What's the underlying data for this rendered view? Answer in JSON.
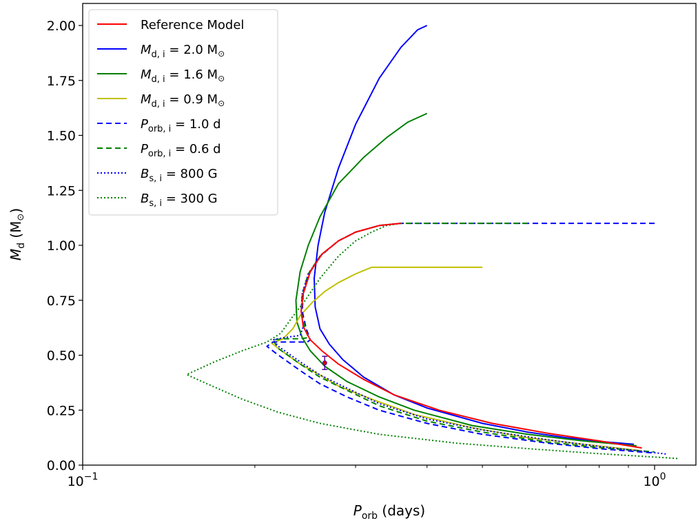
{
  "chart_data": {
    "type": "line",
    "title": "",
    "xlabel": {
      "main": "P",
      "sub": "orb",
      "rest": " (days)"
    },
    "ylabel": {
      "main": "M",
      "sub": "d",
      "rest": " (M",
      "sym": "⊙",
      "end": ")"
    },
    "xscale": "log",
    "xlim": [
      0.1,
      1.2
    ],
    "ylim": [
      0.0,
      2.1
    ],
    "x_major_ticks": [
      {
        "value": 0.1,
        "base": "10",
        "exp": "−1"
      },
      {
        "value": 1.0,
        "base": "10",
        "exp": "0"
      }
    ],
    "x_minor_ticks": [
      0.2,
      0.3,
      0.4,
      0.5,
      0.6,
      0.7,
      0.8,
      0.9
    ],
    "y_ticks": [
      {
        "value": 0.0,
        "label": "0.00"
      },
      {
        "value": 0.25,
        "label": "0.25"
      },
      {
        "value": 0.5,
        "label": "0.50"
      },
      {
        "value": 0.75,
        "label": "0.75"
      },
      {
        "value": 1.0,
        "label": "1.00"
      },
      {
        "value": 1.25,
        "label": "1.25"
      },
      {
        "value": 1.5,
        "label": "1.50"
      },
      {
        "value": 1.75,
        "label": "1.75"
      },
      {
        "value": 2.0,
        "label": "2.00"
      }
    ],
    "grid": false,
    "legend_position": "top-left",
    "observed_point": {
      "x": 0.265,
      "y": 0.465,
      "yerr": 0.03,
      "color": "#e00000",
      "edge": "#5000a0"
    },
    "series": [
      {
        "legend": {
          "sym": "M",
          "sub": "d, i",
          "rest": " = 2.0 M",
          "sun": "⊙"
        },
        "color": "#0000ff",
        "dash": "solid",
        "points": [
          [
            0.4,
            2.0
          ],
          [
            0.385,
            1.98
          ],
          [
            0.36,
            1.9
          ],
          [
            0.33,
            1.76
          ],
          [
            0.3,
            1.55
          ],
          [
            0.28,
            1.35
          ],
          [
            0.265,
            1.15
          ],
          [
            0.258,
            1.0
          ],
          [
            0.254,
            0.85
          ],
          [
            0.255,
            0.72
          ],
          [
            0.26,
            0.62
          ],
          [
            0.27,
            0.55
          ],
          [
            0.285,
            0.48
          ],
          [
            0.31,
            0.4
          ],
          [
            0.35,
            0.32
          ],
          [
            0.4,
            0.26
          ],
          [
            0.5,
            0.19
          ],
          [
            0.6,
            0.15
          ],
          [
            0.7,
            0.125
          ],
          [
            0.8,
            0.108
          ],
          [
            0.92,
            0.095
          ]
        ]
      },
      {
        "legend": {
          "sym": "M",
          "sub": "d, i",
          "rest": " = 1.6 M",
          "sun": "⊙"
        },
        "color": "#008000",
        "dash": "solid",
        "points": [
          [
            0.4,
            1.6
          ],
          [
            0.37,
            1.56
          ],
          [
            0.34,
            1.49
          ],
          [
            0.31,
            1.4
          ],
          [
            0.28,
            1.28
          ],
          [
            0.26,
            1.13
          ],
          [
            0.248,
            1.0
          ],
          [
            0.24,
            0.88
          ],
          [
            0.236,
            0.75
          ],
          [
            0.237,
            0.65
          ],
          [
            0.242,
            0.58
          ],
          [
            0.25,
            0.52
          ],
          [
            0.265,
            0.45
          ],
          [
            0.29,
            0.38
          ],
          [
            0.33,
            0.31
          ],
          [
            0.38,
            0.25
          ],
          [
            0.48,
            0.18
          ],
          [
            0.6,
            0.14
          ],
          [
            0.75,
            0.11
          ],
          [
            0.93,
            0.088
          ]
        ]
      },
      {
        "legend": {
          "sym": "M",
          "sub": "d, i",
          "rest": " = 0.9 M",
          "sun": "⊙"
        },
        "color": "#c0c000",
        "dash": "solid",
        "points": [
          [
            0.5,
            0.9
          ],
          [
            0.45,
            0.9
          ],
          [
            0.32,
            0.9
          ],
          [
            0.3,
            0.87
          ],
          [
            0.28,
            0.83
          ],
          [
            0.265,
            0.79
          ],
          [
            0.252,
            0.74
          ],
          [
            0.24,
            0.68
          ],
          [
            0.233,
            0.62
          ],
          [
            0.224,
            0.575
          ],
          [
            0.217,
            0.56
          ],
          [
            0.214,
            0.555
          ],
          [
            0.22,
            0.53
          ],
          [
            0.24,
            0.46
          ],
          [
            0.26,
            0.41
          ],
          [
            0.28,
            0.36
          ],
          [
            0.32,
            0.3
          ],
          [
            0.38,
            0.23
          ],
          [
            0.48,
            0.17
          ],
          [
            0.6,
            0.125
          ],
          [
            0.75,
            0.095
          ],
          [
            0.95,
            0.065
          ]
        ]
      },
      {
        "legend": {
          "sym": "P",
          "sub": "orb, i",
          "rest": " = 1.0 d",
          "sun": ""
        },
        "color": "#0000ff",
        "dash": "8,5",
        "points": [
          [
            1.0,
            1.1
          ],
          [
            0.6,
            1.1
          ],
          [
            0.4,
            1.1
          ],
          [
            0.36,
            1.1
          ],
          [
            0.33,
            1.09
          ],
          [
            0.3,
            1.06
          ],
          [
            0.28,
            1.02
          ],
          [
            0.262,
            0.96
          ],
          [
            0.25,
            0.88
          ],
          [
            0.243,
            0.78
          ],
          [
            0.242,
            0.7
          ],
          [
            0.246,
            0.62
          ],
          [
            0.25,
            0.57
          ],
          [
            0.247,
            0.56
          ],
          [
            0.23,
            0.56
          ],
          [
            0.215,
            0.56
          ],
          [
            0.21,
            0.54
          ],
          [
            0.22,
            0.5
          ],
          [
            0.24,
            0.43
          ],
          [
            0.26,
            0.37
          ],
          [
            0.29,
            0.31
          ],
          [
            0.33,
            0.25
          ],
          [
            0.4,
            0.19
          ],
          [
            0.5,
            0.14
          ],
          [
            0.65,
            0.1
          ],
          [
            0.8,
            0.075
          ],
          [
            1.0,
            0.055
          ]
        ]
      },
      {
        "legend": {
          "sym": "P",
          "sub": "orb, i",
          "rest": " = 0.6 d",
          "sun": ""
        },
        "color": "#008000",
        "dash": "8,5",
        "points": [
          [
            0.6,
            1.1
          ],
          [
            0.45,
            1.1
          ],
          [
            0.36,
            1.1
          ],
          [
            0.33,
            1.09
          ],
          [
            0.3,
            1.06
          ],
          [
            0.28,
            1.02
          ],
          [
            0.26,
            0.95
          ],
          [
            0.248,
            0.87
          ],
          [
            0.242,
            0.78
          ],
          [
            0.241,
            0.7
          ],
          [
            0.245,
            0.62
          ],
          [
            0.248,
            0.58
          ],
          [
            0.24,
            0.575
          ],
          [
            0.225,
            0.575
          ],
          [
            0.215,
            0.57
          ],
          [
            0.22,
            0.53
          ],
          [
            0.24,
            0.46
          ],
          [
            0.26,
            0.4
          ],
          [
            0.29,
            0.34
          ],
          [
            0.33,
            0.27
          ],
          [
            0.4,
            0.2
          ],
          [
            0.5,
            0.15
          ],
          [
            0.65,
            0.105
          ],
          [
            0.8,
            0.08
          ],
          [
            1.0,
            0.06
          ]
        ]
      },
      {
        "legend": {
          "sym": "B",
          "sub": "s, i",
          "rest": " = 800 G",
          "sun": ""
        },
        "color": "#0000ff",
        "dash": "2,3",
        "points": [
          [
            0.36,
            1.1
          ],
          [
            0.33,
            1.09
          ],
          [
            0.3,
            1.06
          ],
          [
            0.28,
            1.02
          ],
          [
            0.26,
            0.95
          ],
          [
            0.248,
            0.87
          ],
          [
            0.242,
            0.78
          ],
          [
            0.241,
            0.7
          ],
          [
            0.243,
            0.63
          ],
          [
            0.24,
            0.59
          ],
          [
            0.225,
            0.58
          ],
          [
            0.215,
            0.57
          ],
          [
            0.22,
            0.54
          ],
          [
            0.24,
            0.47
          ],
          [
            0.26,
            0.41
          ],
          [
            0.29,
            0.35
          ],
          [
            0.33,
            0.28
          ],
          [
            0.4,
            0.21
          ],
          [
            0.5,
            0.16
          ],
          [
            0.65,
            0.115
          ],
          [
            0.8,
            0.085
          ],
          [
            1.05,
            0.05
          ]
        ]
      },
      {
        "legend": {
          "sym": "B",
          "sub": "s, i",
          "rest": " = 300 G",
          "sun": ""
        },
        "color": "#008000",
        "dash": "2,3",
        "points": [
          [
            0.36,
            1.1
          ],
          [
            0.34,
            1.09
          ],
          [
            0.32,
            1.06
          ],
          [
            0.3,
            1.02
          ],
          [
            0.28,
            0.95
          ],
          [
            0.26,
            0.85
          ],
          [
            0.245,
            0.75
          ],
          [
            0.232,
            0.67
          ],
          [
            0.222,
            0.6
          ],
          [
            0.21,
            0.56
          ],
          [
            0.19,
            0.52
          ],
          [
            0.17,
            0.47
          ],
          [
            0.152,
            0.412
          ],
          [
            0.165,
            0.37
          ],
          [
            0.19,
            0.3
          ],
          [
            0.22,
            0.24
          ],
          [
            0.26,
            0.19
          ],
          [
            0.33,
            0.14
          ],
          [
            0.45,
            0.1
          ],
          [
            0.6,
            0.075
          ],
          [
            0.8,
            0.052
          ],
          [
            1.1,
            0.03
          ]
        ]
      },
      {
        "legend": {
          "sym": "",
          "sub": "",
          "rest": "Reference Model",
          "sun": ""
        },
        "color": "#ff0000",
        "dash": "solid",
        "points": [
          [
            0.36,
            1.1
          ],
          [
            0.33,
            1.09
          ],
          [
            0.3,
            1.06
          ],
          [
            0.28,
            1.02
          ],
          [
            0.262,
            0.96
          ],
          [
            0.25,
            0.88
          ],
          [
            0.243,
            0.78
          ],
          [
            0.241,
            0.7
          ],
          [
            0.243,
            0.63
          ],
          [
            0.25,
            0.57
          ],
          [
            0.262,
            0.52
          ],
          [
            0.28,
            0.46
          ],
          [
            0.31,
            0.39
          ],
          [
            0.35,
            0.32
          ],
          [
            0.42,
            0.25
          ],
          [
            0.52,
            0.19
          ],
          [
            0.65,
            0.145
          ],
          [
            0.8,
            0.11
          ],
          [
            0.95,
            0.078
          ]
        ]
      }
    ],
    "legend_order": [
      7,
      0,
      1,
      2,
      3,
      4,
      5,
      6
    ]
  }
}
